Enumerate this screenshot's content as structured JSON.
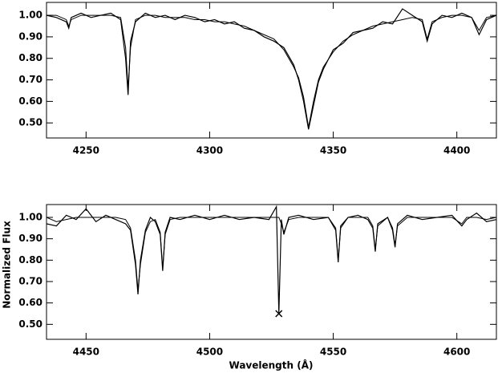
{
  "chart_data": [
    {
      "type": "line",
      "xlim": [
        4234,
        4416
      ],
      "ylim": [
        0.43,
        1.06
      ],
      "xticks": [
        4250,
        4300,
        4350,
        4400
      ],
      "yticks": [
        {
          "value": 0.5,
          "label": "0.50"
        },
        {
          "value": 0.6,
          "label": "0.60"
        },
        {
          "value": 0.7,
          "label": "0.70"
        },
        {
          "value": 0.8,
          "label": "0.80"
        },
        {
          "value": 0.9,
          "label": "0.90"
        },
        {
          "value": 1,
          "label": "1.00"
        }
      ],
      "x": [
        4234,
        4238,
        4242,
        4243,
        4244,
        4248,
        4252,
        4256,
        4260,
        4264,
        4266,
        4267,
        4268,
        4270,
        4274,
        4278,
        4282,
        4286,
        4290,
        4294,
        4298,
        4302,
        4306,
        4310,
        4314,
        4318,
        4322,
        4326,
        4330,
        4334,
        4336,
        4338,
        4340,
        4342,
        4344,
        4346,
        4350,
        4354,
        4358,
        4362,
        4366,
        4370,
        4374,
        4378,
        4382,
        4386,
        4388,
        4390,
        4394,
        4398,
        4402,
        4406,
        4409,
        4412,
        4416
      ],
      "series": [
        {
          "color": "#000000",
          "values": [
            1.0,
            1.0,
            0.98,
            0.95,
            0.98,
            1.0,
            1.0,
            1.0,
            1.0,
            0.99,
            0.85,
            0.66,
            0.85,
            0.98,
            1.0,
            1.0,
            0.99,
            0.99,
            0.99,
            0.98,
            0.98,
            0.97,
            0.97,
            0.96,
            0.95,
            0.93,
            0.91,
            0.89,
            0.84,
            0.76,
            0.71,
            0.62,
            0.48,
            0.6,
            0.7,
            0.76,
            0.83,
            0.88,
            0.91,
            0.93,
            0.95,
            0.96,
            0.97,
            0.98,
            0.99,
            0.98,
            0.89,
            0.97,
            0.99,
            1.0,
            1.0,
            0.99,
            0.93,
            0.99,
            1.0
          ]
        },
        {
          "color": "#000000",
          "values": [
            1.0,
            0.99,
            0.97,
            0.94,
            0.99,
            1.01,
            0.99,
            1.0,
            1.01,
            0.98,
            0.8,
            0.63,
            0.88,
            0.97,
            1.01,
            0.99,
            1.0,
            0.98,
            1.0,
            0.99,
            0.97,
            0.98,
            0.96,
            0.97,
            0.94,
            0.93,
            0.9,
            0.88,
            0.85,
            0.77,
            0.7,
            0.6,
            0.47,
            0.58,
            0.69,
            0.75,
            0.84,
            0.87,
            0.92,
            0.93,
            0.94,
            0.97,
            0.96,
            1.03,
            1.0,
            0.97,
            0.88,
            0.96,
            1.0,
            0.99,
            1.01,
            0.99,
            0.91,
            0.98,
            1.0
          ]
        }
      ]
    },
    {
      "type": "line",
      "xlim": [
        4434,
        4616
      ],
      "ylim": [
        0.43,
        1.06
      ],
      "xticks": [
        4450,
        4500,
        4550,
        4600
      ],
      "yticks": [
        {
          "value": 0.5,
          "label": "0.50"
        },
        {
          "value": 0.6,
          "label": "0.60"
        },
        {
          "value": 0.7,
          "label": "0.70"
        },
        {
          "value": 0.8,
          "label": "0.80"
        },
        {
          "value": 0.9,
          "label": "0.90"
        },
        {
          "value": 1,
          "label": "1.00"
        }
      ],
      "xlabel": "Wavelength (Å)",
      "ylabel": "Normalized Flux",
      "x": [
        4434,
        4438,
        4442,
        4446,
        4450,
        4454,
        4458,
        4462,
        4466,
        4468,
        4470,
        4471,
        4472,
        4474,
        4476,
        4478,
        4480,
        4481,
        4482,
        4484,
        4488,
        4494,
        4500,
        4506,
        4512,
        4518,
        4524,
        4527,
        4528,
        4529,
        4530,
        4532,
        4536,
        4542,
        4548,
        4551,
        4552,
        4553,
        4556,
        4560,
        4564,
        4566,
        4567,
        4568,
        4572,
        4574,
        4575,
        4576,
        4580,
        4586,
        4592,
        4598,
        4602,
        4604,
        4608,
        4612,
        4616
      ],
      "series": [
        {
          "color": "#000000",
          "values": [
            1.0,
            0.98,
            0.99,
            1.0,
            1.0,
            1.0,
            1.0,
            1.0,
            0.99,
            0.95,
            0.8,
            0.66,
            0.78,
            0.93,
            0.98,
            0.99,
            0.93,
            0.76,
            0.92,
            0.99,
            1.0,
            1.0,
            1.0,
            1.0,
            1.0,
            1.0,
            1.0,
            1.0,
            1.0,
            0.97,
            0.93,
            0.99,
            1.0,
            1.0,
            1.0,
            0.95,
            0.8,
            0.95,
            1.0,
            1.0,
            1.0,
            0.96,
            0.85,
            0.96,
            1.0,
            0.95,
            0.87,
            0.96,
            1.0,
            1.0,
            1.0,
            1.0,
            0.97,
            1.0,
            1.0,
            0.99,
            1.0
          ]
        },
        {
          "color": "#000000",
          "values": [
            0.97,
            0.96,
            1.01,
            0.99,
            1.04,
            0.98,
            1.01,
            0.99,
            0.97,
            0.94,
            0.78,
            0.64,
            0.8,
            0.94,
            1.0,
            0.98,
            0.92,
            0.75,
            0.93,
            1.0,
            0.99,
            1.01,
            0.99,
            1.01,
            0.99,
            1.0,
            0.99,
            1.05,
            0.55,
            0.99,
            0.92,
            1.0,
            1.01,
            0.99,
            1.0,
            0.94,
            0.79,
            0.96,
            1.0,
            1.01,
            0.99,
            0.95,
            0.84,
            0.97,
            1.0,
            0.94,
            0.86,
            0.97,
            1.01,
            0.99,
            1.0,
            1.01,
            0.96,
            0.99,
            1.02,
            0.98,
            0.99
          ]
        }
      ],
      "marker": {
        "x": 4528,
        "y": 0.55
      }
    }
  ]
}
